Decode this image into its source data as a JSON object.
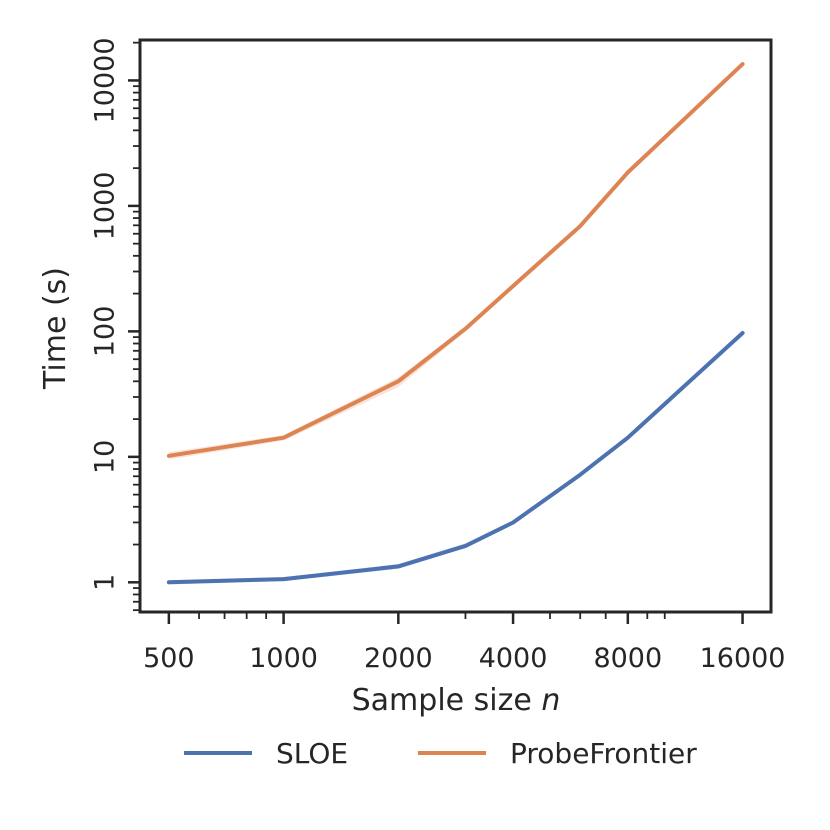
{
  "chart_data": {
    "type": "line",
    "xscale": "log2",
    "yscale": "log10",
    "x": [
      500,
      1000,
      2000,
      3000,
      4000,
      6000,
      8000,
      16000
    ],
    "xticks": [
      500,
      1000,
      2000,
      4000,
      8000,
      16000
    ],
    "xtick_labels": [
      "500",
      "1000",
      "2000",
      "4000",
      "8000",
      "16000"
    ],
    "yticks": [
      1,
      10,
      100,
      1000,
      10000
    ],
    "ytick_labels": [
      "1",
      "10",
      "100",
      "1000",
      "10000"
    ],
    "xlabel": "Sample size ",
    "xlabel_var": "n",
    "ylabel": "Time (s)",
    "xlim": [
      420,
      19000
    ],
    "ylim": [
      0.58,
      21000
    ],
    "grid": false,
    "legend_position": "bottom-center",
    "series": [
      {
        "name": "SLOE",
        "color": "#4c72b0",
        "values": [
          1.0,
          1.06,
          1.34,
          1.95,
          3.0,
          7.2,
          14.2,
          97
        ],
        "band_low": [
          0.96,
          1.02,
          1.28,
          1.88,
          2.9,
          7.0,
          13.8,
          95
        ],
        "band_high": [
          1.04,
          1.1,
          1.4,
          2.05,
          3.1,
          7.4,
          14.6,
          99
        ]
      },
      {
        "name": "ProbeFrontier",
        "color": "#dd8452",
        "values": [
          10.2,
          14.2,
          40,
          105,
          230,
          690,
          1850,
          13500
        ],
        "band_low": [
          9.5,
          13.5,
          36,
          100,
          225,
          670,
          1750,
          13200
        ],
        "band_high": [
          10.9,
          14.9,
          43,
          110,
          238,
          710,
          1950,
          13800
        ]
      }
    ]
  }
}
